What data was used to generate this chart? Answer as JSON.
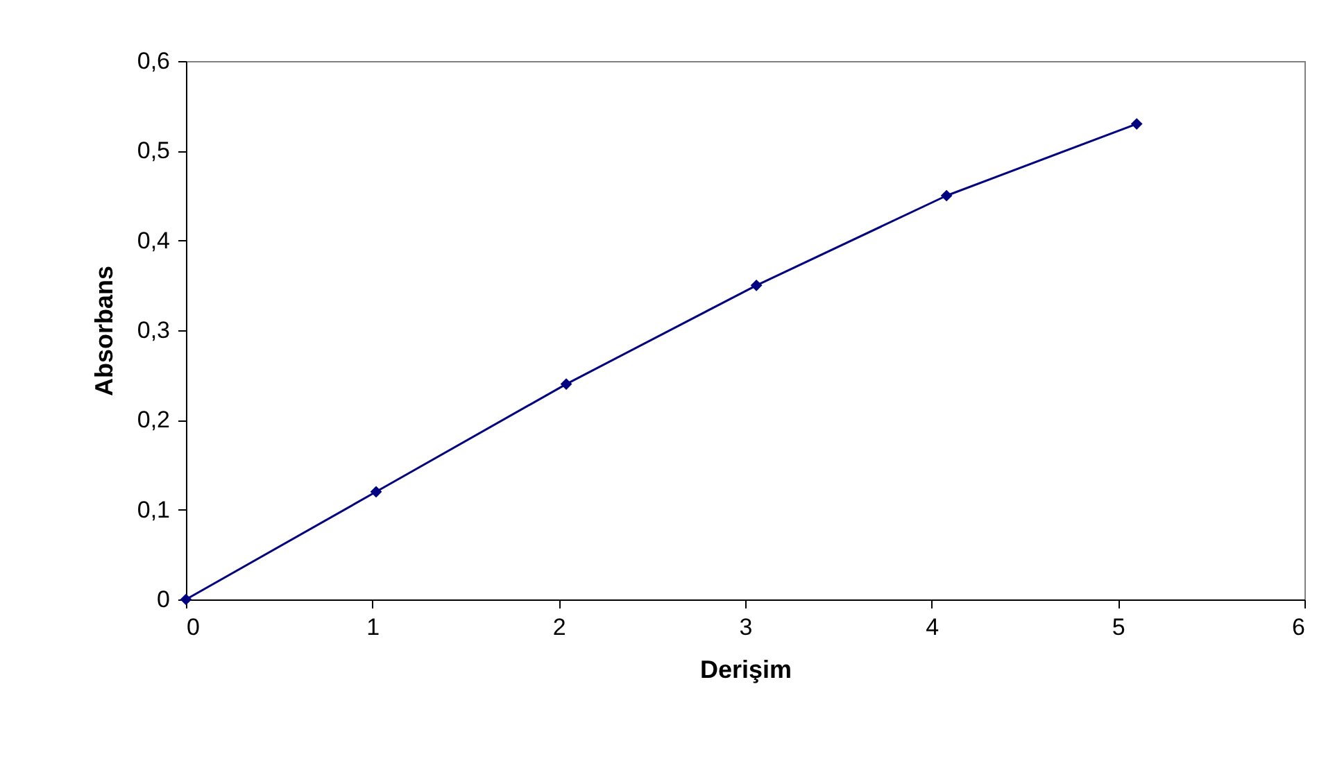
{
  "chart_data": {
    "type": "line",
    "xlabel": "Derişim",
    "ylabel": "Absorbans",
    "x": [
      0,
      1.02,
      2.04,
      3.06,
      4.08,
      5.1
    ],
    "series": [
      {
        "color": "#000080",
        "values": [
          0,
          0.12,
          0.24,
          0.35,
          0.45,
          0.53
        ]
      }
    ],
    "xlim": [
      0,
      6
    ],
    "xticks": [
      0,
      1,
      2,
      3,
      4,
      5,
      6
    ],
    "ylim": [
      0,
      0.6
    ],
    "yticks": [
      0,
      {
        "value": 0.1,
        "label": "0,1"
      },
      {
        "value": 0.2,
        "label": "0,2"
      },
      {
        "value": 0.3,
        "label": "0,3"
      },
      {
        "value": 0.4,
        "label": "0,4"
      },
      {
        "value": 0.5,
        "label": "0,5"
      },
      {
        "value": 0.6,
        "label": "0,6"
      }
    ],
    "grid": false,
    "marker": "diamond",
    "line_style": "solid"
  }
}
